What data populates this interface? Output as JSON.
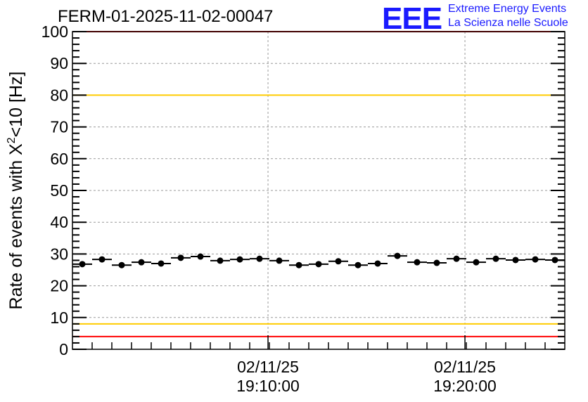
{
  "header": {
    "title": "FERM-01-2025-11-02-00047",
    "logo_text": "EEE",
    "logo_line1": "Extreme Energy Events",
    "logo_line2": "La Scienza nelle Scuole"
  },
  "chart_data": {
    "type": "scatter",
    "title": "FERM-01-2025-11-02-00047",
    "ylabel": "Rate of events with X²<10 [Hz]",
    "ylabel_main": "Rate of events with X",
    "ylabel_sup": "2",
    "ylabel_tail": "<10 [Hz]",
    "xlabel": "",
    "ylim": [
      0,
      100
    ],
    "yticks": [
      "0",
      "10",
      "20",
      "30",
      "40",
      "50",
      "60",
      "70",
      "80",
      "90",
      "100"
    ],
    "xlim_minutes": [
      0,
      25
    ],
    "xticks": [
      {
        "min": 9.93,
        "date": "02/11/25",
        "time": "19:10:00"
      },
      {
        "min": 19.93,
        "date": "02/11/25",
        "time": "19:20:00"
      }
    ],
    "bin_width_minutes": 1,
    "values": [
      26.8,
      28.3,
      26.5,
      27.4,
      27.0,
      28.8,
      29.2,
      27.9,
      28.3,
      28.5,
      27.9,
      26.5,
      26.8,
      27.7,
      26.5,
      27.0,
      29.4,
      27.4,
      27.2,
      28.5,
      27.4,
      28.5,
      28.1,
      28.3,
      28.1
    ],
    "hlines": [
      {
        "y": 100,
        "color": "#ff0000"
      },
      {
        "y": 80,
        "color": "#ffcc00"
      },
      {
        "y": 8,
        "color": "#ffcc00"
      },
      {
        "y": 4,
        "color": "#ff0000"
      }
    ],
    "grid": true
  }
}
